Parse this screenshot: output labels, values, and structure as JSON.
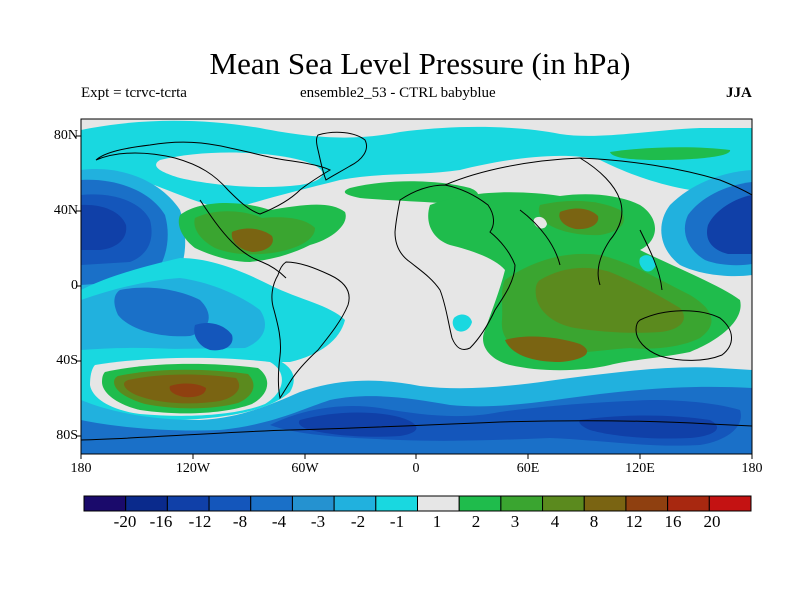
{
  "header": {
    "title": "Mean Sea Level Pressure (in hPa)",
    "experiment": "Expt = tcrvc-tcrta",
    "ensemble": "ensemble2_53 - CTRL babyblue",
    "season": "JJA"
  },
  "axes": {
    "lat_labels": [
      "80N",
      "40N",
      "0",
      "40S",
      "80S"
    ],
    "lon_labels": [
      "180",
      "120W",
      "60W",
      "0",
      "60E",
      "120E",
      "180"
    ]
  },
  "colorbar": {
    "colors": [
      "#1a0a6b",
      "#0a2a8c",
      "#1040a8",
      "#1456bb",
      "#1a70c8",
      "#2592d0",
      "#21b1de",
      "#19d8e0",
      "#e6e6e6",
      "#1fbc4c",
      "#3aa530",
      "#5b8a1e",
      "#7a6412",
      "#8f4010",
      "#a82810",
      "#c41212"
    ],
    "labels": [
      "-20",
      "-16",
      "-12",
      "-8",
      "-4",
      "-3",
      "-2",
      "-1",
      "1",
      "2",
      "3",
      "4",
      "8",
      "12",
      "16",
      "20"
    ]
  }
}
